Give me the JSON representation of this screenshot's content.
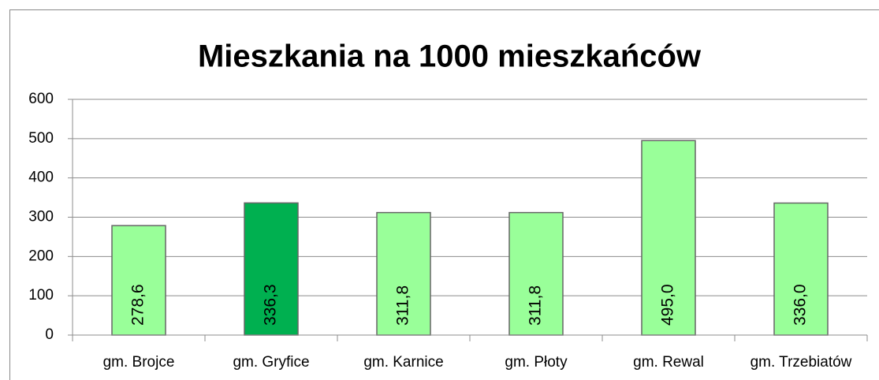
{
  "chart_data": {
    "type": "bar",
    "title": "Mieszkania na 1000 mieszkańców",
    "categories": [
      "gm. Brojce",
      "gm. Gryfice",
      "gm. Karnice",
      "gm. Płoty",
      "gm. Rewal",
      "gm. Trzebiatów"
    ],
    "values": [
      278.6,
      336.3,
      311.8,
      311.8,
      495.0,
      336.0
    ],
    "value_labels": [
      "278,6",
      "336,3",
      "311,8",
      "311,8",
      "495,0",
      "336,0"
    ],
    "colors": [
      "#99ff99",
      "#00b050",
      "#99ff99",
      "#99ff99",
      "#99ff99",
      "#99ff99"
    ],
    "ylim": [
      0,
      600
    ],
    "yticks": [
      0,
      100,
      200,
      300,
      400,
      500,
      600
    ],
    "grid": true
  }
}
